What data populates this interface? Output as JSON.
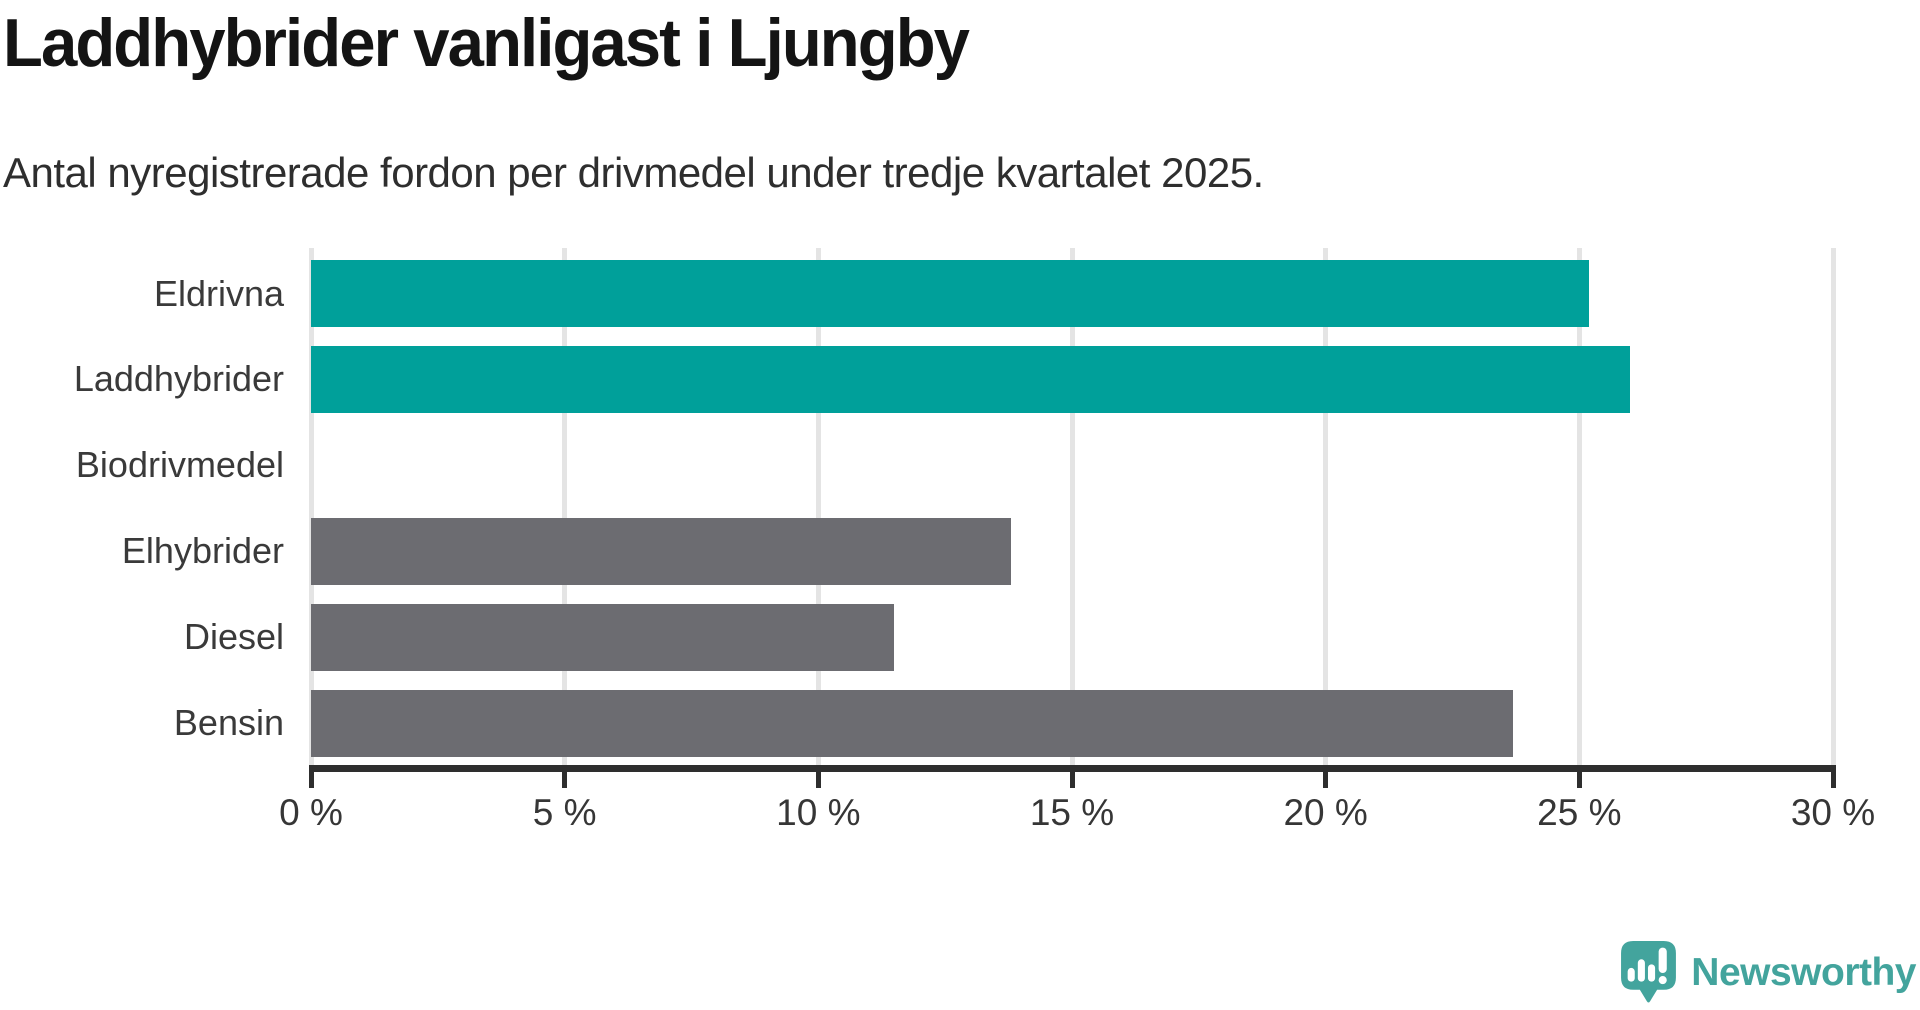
{
  "header": {
    "title": "Laddhybrider vanligast i Ljungby",
    "subtitle": "Antal nyregistrerade fordon per drivmedel under tredje kvartalet 2025."
  },
  "chart_data": {
    "type": "bar",
    "orientation": "horizontal",
    "title": "Laddhybrider vanligast i Ljungby",
    "subtitle": "Antal nyregistrerade fordon per drivmedel under tredje kvartalet 2025.",
    "categories": [
      "Eldrivna",
      "Laddhybrider",
      "Biodrivmedel",
      "Elhybrider",
      "Diesel",
      "Bensin"
    ],
    "values": [
      25.2,
      26.0,
      0,
      13.8,
      11.5,
      23.7
    ],
    "unit": "%",
    "xlim": [
      0,
      30
    ],
    "xticks": [
      0,
      5,
      10,
      15,
      20,
      25,
      30
    ],
    "xtick_suffix": " %",
    "xtick_labels": [
      "0 %",
      "5 %",
      "10 %",
      "15 %",
      "20 %",
      "25 %",
      "30 %"
    ],
    "grid": "vertical-gridlines-on",
    "legend": "none",
    "highlight_color": "#00a09a",
    "default_color": "#6c6c71",
    "bar_colors": [
      "#00a09a",
      "#00a09a",
      "#6c6c71",
      "#6c6c71",
      "#6c6c71",
      "#6c6c71"
    ],
    "gridline_color": "#e4e4e4",
    "axis_color": "#2e2e2e"
  },
  "footer": {
    "brand": "Newsworthy",
    "brand_color": "#43a49d",
    "logo_icon": "newsworthy-speech-bubble-bar-chart-icon"
  }
}
